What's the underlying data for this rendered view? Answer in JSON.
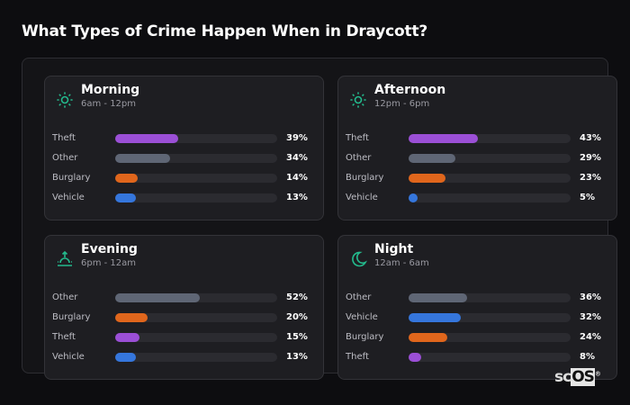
{
  "title": "What Types of Crime Happen When in Draycott?",
  "logo": {
    "prefix": "sc",
    "box": "OS",
    "mark": "®"
  },
  "colors": {
    "Theft": "#9b4fd6",
    "Other": "#5f6675",
    "Burglary": "#e0661c",
    "Vehicle": "#3576dc",
    "accent": "#23b98c"
  },
  "chart_data": [
    {
      "type": "bar",
      "title": "Morning",
      "subtitle": "6am - 12pm",
      "icon": "sun-icon",
      "categories": [
        "Theft",
        "Other",
        "Burglary",
        "Vehicle"
      ],
      "values": [
        39,
        34,
        14,
        13
      ],
      "labels": [
        "39%",
        "34%",
        "14%",
        "13%"
      ],
      "xlim": [
        0,
        100
      ]
    },
    {
      "type": "bar",
      "title": "Afternoon",
      "subtitle": "12pm - 6pm",
      "icon": "sun-icon",
      "categories": [
        "Theft",
        "Other",
        "Burglary",
        "Vehicle"
      ],
      "values": [
        43,
        29,
        23,
        5
      ],
      "labels": [
        "43%",
        "29%",
        "23%",
        "5%"
      ],
      "xlim": [
        0,
        100
      ]
    },
    {
      "type": "bar",
      "title": "Evening",
      "subtitle": "6pm - 12am",
      "icon": "sunset-icon",
      "categories": [
        "Other",
        "Burglary",
        "Theft",
        "Vehicle"
      ],
      "values": [
        52,
        20,
        15,
        13
      ],
      "labels": [
        "52%",
        "20%",
        "15%",
        "13%"
      ],
      "xlim": [
        0,
        100
      ]
    },
    {
      "type": "bar",
      "title": "Night",
      "subtitle": "12am - 6am",
      "icon": "moon-icon",
      "categories": [
        "Other",
        "Vehicle",
        "Burglary",
        "Theft"
      ],
      "values": [
        36,
        32,
        24,
        8
      ],
      "labels": [
        "36%",
        "32%",
        "24%",
        "8%"
      ],
      "xlim": [
        0,
        100
      ]
    }
  ]
}
